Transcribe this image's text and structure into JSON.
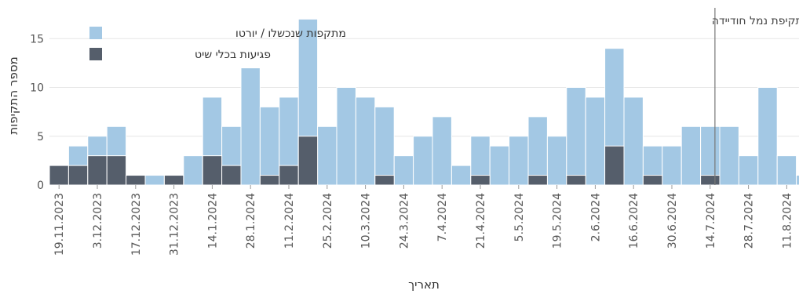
{
  "chart_data": {
    "type": "bar",
    "stacked": "overlay",
    "xlabel": "תאריך",
    "ylabel": "מספר התקיפות",
    "ylim": [
      0,
      18
    ],
    "yticks": [
      0,
      5,
      10,
      15
    ],
    "grid": true,
    "legend_position": "top-left",
    "x_tick_labels": [
      "19.11.2023",
      "3.12.2023",
      "17.12.2023",
      "31.12.2023",
      "14.1.2024",
      "28.1.2024",
      "11.2.2024",
      "25.2.2024",
      "10.3.2024",
      "24.3.2024",
      "7.4.2024",
      "21.4.2024",
      "5.5.2024",
      "19.5.2024",
      "2.6.2024",
      "16.6.2024",
      "30.6.2024",
      "14.7.2024",
      "28.7.2024",
      "11.8.2024"
    ],
    "series": [
      {
        "name": "מתקפות שנכשלו / יורטו",
        "color": "#a3c8e4",
        "values": [
          2,
          4,
          5,
          6,
          1,
          1,
          1,
          3,
          9,
          6,
          12,
          8,
          9,
          17,
          6,
          10,
          9,
          8,
          3,
          5,
          7,
          2,
          5,
          4,
          5,
          7,
          5,
          10,
          9,
          14,
          9,
          4,
          4,
          6,
          6,
          6,
          3,
          10,
          3,
          1
        ]
      },
      {
        "name": "פגיעות בכלי שיט",
        "color": "#555e6b",
        "values": [
          2,
          2,
          3,
          3,
          1,
          0,
          1,
          0,
          3,
          2,
          0,
          1,
          2,
          5,
          0,
          0,
          0,
          1,
          0,
          0,
          0,
          0,
          1,
          0,
          0,
          1,
          0,
          1,
          0,
          4,
          0,
          1,
          0,
          0,
          1,
          0,
          0,
          0,
          0,
          0
        ]
      }
    ],
    "annotation": {
      "label": "תקיפת נמל חודיידה",
      "x_index": 34.75
    }
  }
}
